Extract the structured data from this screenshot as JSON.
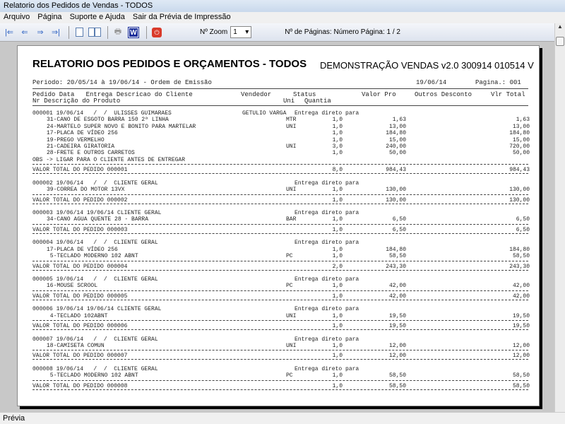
{
  "window": {
    "title": "Relatorio dos Pedidos de Vendas - TODOS"
  },
  "menu": [
    "Arquivo",
    "Página",
    "Suporte e Ajuda",
    "Sair da Prévia de Impressão"
  ],
  "toolbar": {
    "zoom_label": "Nº Zoom",
    "zoom_value": "1",
    "pages_label": "Nº de Páginas: Número Página: 1 / 2",
    "icons": [
      "first-page-icon",
      "prev-page-icon",
      "next-page-icon",
      "last-page-icon",
      "single-page-icon",
      "two-page-icon",
      "print-icon",
      "word-export-icon",
      "power-exit-icon"
    ]
  },
  "report": {
    "title": "RELATORIO DOS PEDIDOS E ORÇAMENTOS - TODOS",
    "system": "DEMONSTRAÇÃO VENDAS v2.0 300914 010514 V",
    "period": "Periodo: 20/05/14 à 19/06/14 - Ordem de Emissão",
    "date": "19/06/14",
    "page": "Pagina.: 001",
    "header1": {
      "left": "Pedido Data   Entrega Descricao do Cliente",
      "vendedor": "Vendedor",
      "status": "Status",
      "valor": "Valor Pro",
      "outros": "Outros Desconto",
      "total": "Vlr Total"
    },
    "header2": {
      "left": "Nr Descrição do Produto",
      "uni": "Uni",
      "qtd": "Quantia"
    },
    "orders": [
      {
        "head": "000001 19/06/14   /  /  ULISSES GUIMARAES",
        "vendedor": "GETULIO VARGA",
        "status": "Entrega direto para",
        "items": [
          [
            "31-CANO DE ESGOTO BARRA 150 2ª LINHA",
            "MTR",
            "1,0",
            "1,63",
            "1,63"
          ],
          [
            "24-MARTELO SUPER NOVO E BONITO PARA MARTELAR",
            "UNI",
            "1,0",
            "13,00",
            "13,00"
          ],
          [
            "17-PLACA DE VÍDEO 256",
            "",
            "1,0",
            "184,80",
            "184,80"
          ],
          [
            "19-PREGO VERMELHO",
            "",
            "1,0",
            "15,00",
            "15,00"
          ],
          [
            "21-CADEIRA GIRATORIA",
            "UNI",
            "3,0",
            "240,00",
            "720,00"
          ],
          [
            "28-FRETE E OUTROS CARRETOS",
            "",
            "1,0",
            "50,00",
            "50,00"
          ]
        ],
        "obs": "OBS -> LIGAR PARA O CLIENTE ANTES DE ENTREGAR",
        "total": [
          "VALOR TOTAL DO PEDIDO 000001",
          "8,0",
          "984,43",
          "984,43"
        ]
      },
      {
        "head": "000002 19/06/14   /  /  CLIENTE GERAL",
        "vendedor": "",
        "status": "Entrega direto para",
        "items": [
          [
            "39-CORREA DO MOTOR 13VX",
            "UNI",
            "1,0",
            "130,00",
            "130,00"
          ]
        ],
        "total": [
          "VALOR TOTAL DO PEDIDO 000002",
          "1,0",
          "130,00",
          "130,00"
        ]
      },
      {
        "head": "000003 19/06/14 19/06/14 CLIENTE GERAL",
        "vendedor": "",
        "status": "Entrega direto para",
        "items": [
          [
            "34-CANO AGUA QUENTE 28 - BARRA",
            "BAR",
            "1,0",
            "6,50",
            "6,50"
          ]
        ],
        "total": [
          "VALOR TOTAL DO PEDIDO 000003",
          "1,0",
          "6,50",
          "6,50"
        ]
      },
      {
        "head": "000004 19/06/14   /  /  CLIENTE GERAL",
        "vendedor": "",
        "status": "Entrega direto para",
        "items": [
          [
            "17-PLACA DE VÍDEO 256",
            "",
            "1,0",
            "184,80",
            "184,80"
          ],
          [
            " 5-TECLADO MODERNO 102 ABNT",
            "PC",
            "1,0",
            "58,50",
            "58,50"
          ]
        ],
        "total": [
          "VALOR TOTAL DO PEDIDO 000004",
          "2,0",
          "243,30",
          "243,30"
        ]
      },
      {
        "head": "000005 19/06/14   /  /  CLIENTE GERAL",
        "vendedor": "",
        "status": "Entrega direto para",
        "items": [
          [
            "16-MOUSE SCROOL",
            "PC",
            "1,0",
            "42,00",
            "42,00"
          ]
        ],
        "total": [
          "VALOR TOTAL DO PEDIDO 000005",
          "1,0",
          "42,00",
          "42,00"
        ]
      },
      {
        "head": "000006 19/06/14 19/06/14 CLIENTE GERAL",
        "vendedor": "",
        "status": "Entrega direto para",
        "items": [
          [
            " 4-TECLADO 102ABNT",
            "UNI",
            "1,0",
            "19,50",
            "19,50"
          ]
        ],
        "total": [
          "VALOR TOTAL DO PEDIDO 000006",
          "1,0",
          "19,50",
          "19,50"
        ]
      },
      {
        "head": "000007 19/06/14   /  /  CLIENTE GERAL",
        "vendedor": "",
        "status": "Entrega direto para",
        "items": [
          [
            "18-CAMISETA COMUN",
            "UNI",
            "1,0",
            "12,00",
            "12,00"
          ]
        ],
        "total": [
          "VALOR TOTAL DO PEDIDO 000007",
          "1,0",
          "12,00",
          "12,00"
        ]
      },
      {
        "head": "000008 19/06/14   /  /  CLIENTE GERAL",
        "vendedor": "",
        "status": "Entrega direto para",
        "items": [
          [
            " 5-TECLADO MODERNO 102 ABNT",
            "PC",
            "1,0",
            "58,50",
            "58,50"
          ]
        ],
        "total": [
          "VALOR TOTAL DO PEDIDO 000008",
          "1,0",
          "58,50",
          "58,50"
        ]
      }
    ]
  },
  "statusbar": {
    "text": "Prévia"
  }
}
